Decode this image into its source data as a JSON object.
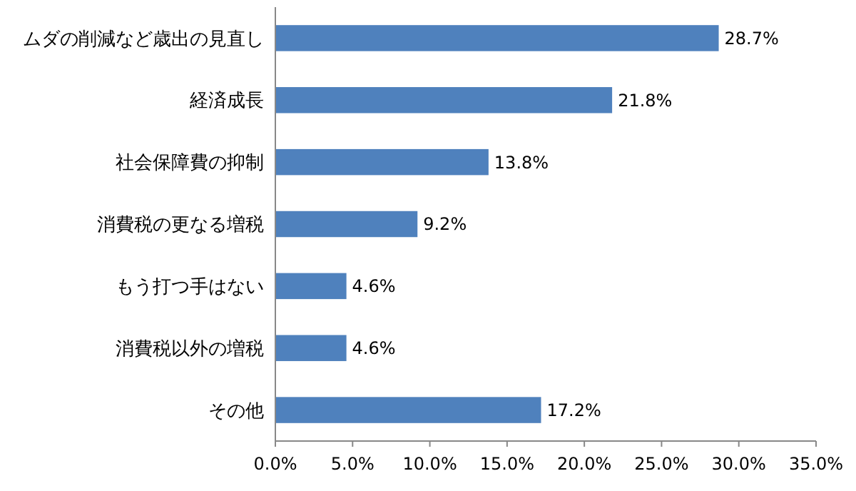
{
  "chart_data": {
    "type": "bar",
    "orientation": "horizontal",
    "categories": [
      "ムダの削減など歳出の見直し",
      "経済成長",
      "社会保障費の抑制",
      "消費税の更なる増税",
      "もう打つ手はない",
      "消費税以外の増税",
      "その他"
    ],
    "values": [
      28.7,
      21.8,
      13.8,
      9.2,
      4.6,
      4.6,
      17.2
    ],
    "value_labels": [
      "28.7%",
      "21.8%",
      "13.8%",
      "9.2%",
      "4.6%",
      "4.6%",
      "17.2%"
    ],
    "color": "#4f81bd",
    "xlim": [
      0,
      35
    ],
    "xticks": [
      {
        "value": 0,
        "label": "0.0%"
      },
      {
        "value": 5,
        "label": "5.0%"
      },
      {
        "value": 10,
        "label": "10.0%"
      },
      {
        "value": 15,
        "label": "15.0%"
      },
      {
        "value": 20,
        "label": "20.0%"
      },
      {
        "value": 25,
        "label": "25.0%"
      },
      {
        "value": 30,
        "label": "30.0%"
      },
      {
        "value": 35,
        "label": "35.0%"
      }
    ],
    "grid": false
  }
}
